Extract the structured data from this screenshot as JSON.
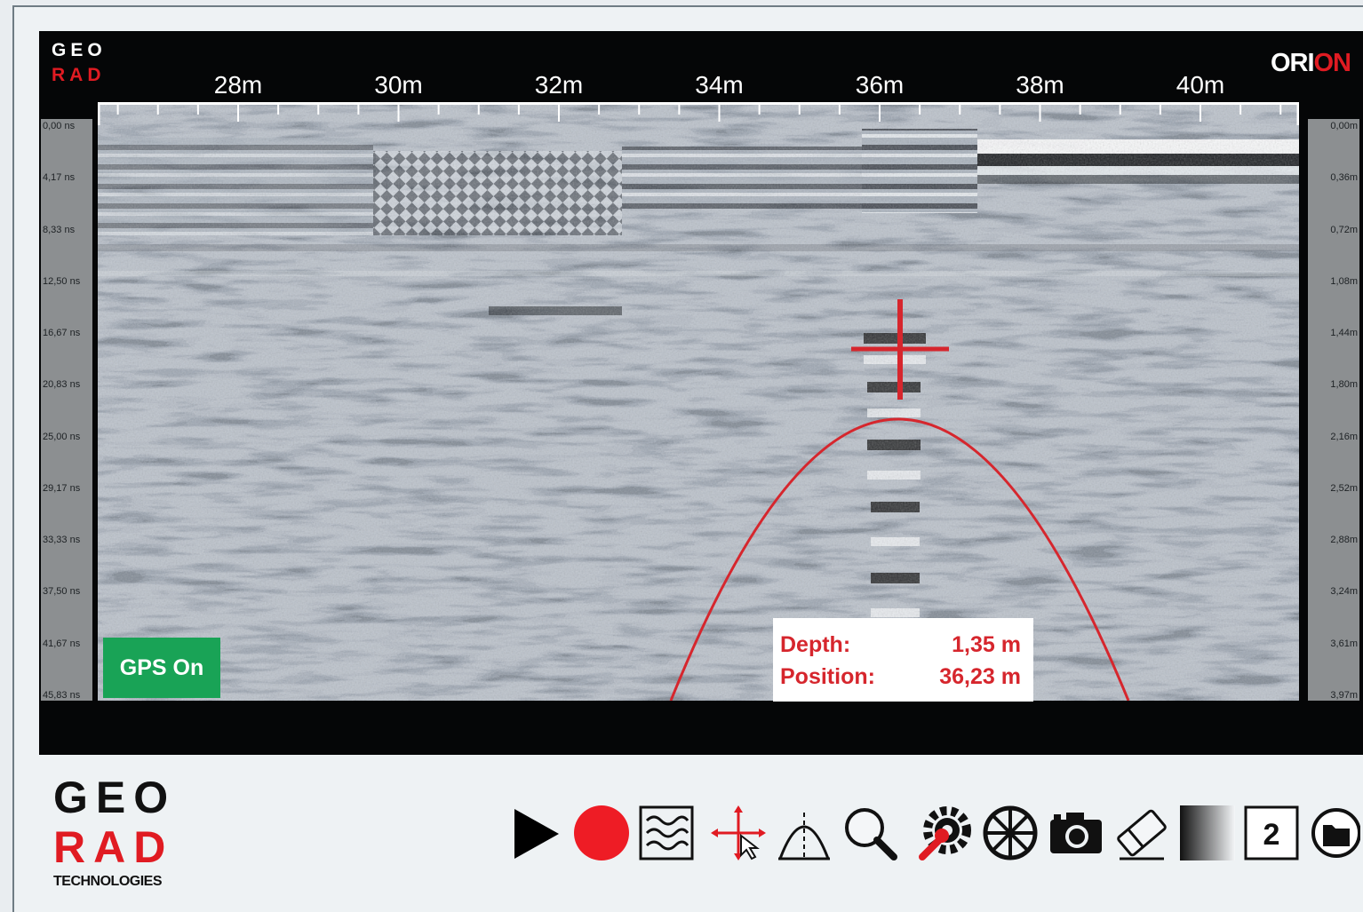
{
  "app": {
    "logo_top": "GEO",
    "logo_bottom": "RAD",
    "brand_prefix": "ORI",
    "brand_suffix": "ON",
    "company_line1": "GEO",
    "company_line2": "RAD",
    "company_line3": "TECHNOLOGIES"
  },
  "distance_axis": {
    "labels": [
      "28m",
      "30m",
      "32m",
      "34m",
      "36m",
      "38m",
      "40m"
    ]
  },
  "time_axis": {
    "labels": [
      "0,00 ns",
      "4,17 ns",
      "8,33 ns",
      "12,50 ns",
      "16,67 ns",
      "20,83 ns",
      "25,00 ns",
      "29,17 ns",
      "33,33 ns",
      "37,50 ns",
      "41,67 ns",
      "45,83 ns"
    ]
  },
  "depth_axis": {
    "labels": [
      "0,00m",
      "0,36m",
      "0,72m",
      "1,08m",
      "1,44m",
      "1,80m",
      "2,16m",
      "2,52m",
      "2,88m",
      "3,24m",
      "3,61m",
      "3,97m"
    ]
  },
  "status": {
    "gps": "GPS On"
  },
  "measurement": {
    "depth_label": "Depth:",
    "depth_value": "1,35 m",
    "position_label": "Position:",
    "position_value": "36,23 m"
  },
  "toolbar": {
    "items": [
      "play-icon",
      "record-icon",
      "filter-icon",
      "crosshair-cursor-icon",
      "hyperbola-icon",
      "zoom-icon",
      "settings-wrench-icon",
      "wheel-icon",
      "camera-icon",
      "eraser-icon",
      "gain-gradient-icon",
      "channel-number-icon",
      "folder-icon"
    ],
    "channel_number": "2"
  },
  "colors": {
    "accent": "#e01b22",
    "gps": "#19a356",
    "screen": "#050607"
  }
}
